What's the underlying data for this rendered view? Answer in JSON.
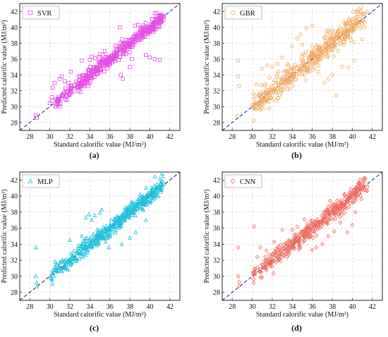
{
  "x_axis_label": "Standard calorific value (MJ/m³)",
  "y_axis_label": "Predicted calorific value (MJ/m³)",
  "chart_data": [
    {
      "type": "scatter",
      "panel_label": "(a)",
      "legend": "SVR",
      "marker": "square",
      "color": "#e64ee6",
      "xlim": [
        27,
        43
      ],
      "ylim": [
        27,
        43
      ],
      "xticks": [
        28,
        30,
        32,
        34,
        36,
        38,
        40,
        42
      ],
      "yticks": [
        28,
        30,
        32,
        34,
        36,
        38,
        40,
        42
      ],
      "grid": true,
      "legend_position": "top-left",
      "reference_line": {
        "style": "dashed",
        "color": "#1f2fa8",
        "from": [
          27,
          27
        ],
        "to": [
          43,
          43
        ]
      },
      "seed": 11,
      "n": 420,
      "spread": 0.45,
      "outliers": [
        [
          28.6,
          28.9
        ],
        [
          28.7,
          28.6
        ],
        [
          30.2,
          31.2
        ],
        [
          30.3,
          32.4
        ],
        [
          30.5,
          33.0
        ],
        [
          31.0,
          33.5
        ],
        [
          31.2,
          33.8
        ],
        [
          31.5,
          33.2
        ],
        [
          32.1,
          34.4
        ],
        [
          33.2,
          35.8
        ],
        [
          34.0,
          35.9
        ],
        [
          34.2,
          36.3
        ],
        [
          34.5,
          36.1
        ],
        [
          35.0,
          36.6
        ],
        [
          35.5,
          37.0
        ],
        [
          37.1,
          34.0
        ],
        [
          37.3,
          33.5
        ],
        [
          38.0,
          35.0
        ],
        [
          38.5,
          40.2
        ],
        [
          38.8,
          40.3
        ],
        [
          39.6,
          36.5
        ],
        [
          40.0,
          36.2
        ],
        [
          40.5,
          36.0
        ],
        [
          41.0,
          35.9
        ],
        [
          41.2,
          40.8
        ],
        [
          37.0,
          40.0
        ],
        [
          38.2,
          36.0
        ]
      ]
    },
    {
      "type": "scatter",
      "panel_label": "(b)",
      "legend": "GBR",
      "marker": "circle",
      "color": "#f2a65c",
      "xlim": [
        27,
        43
      ],
      "ylim": [
        27,
        43
      ],
      "xticks": [
        28,
        30,
        32,
        34,
        36,
        38,
        40,
        42
      ],
      "yticks": [
        28,
        30,
        32,
        34,
        36,
        38,
        40,
        42
      ],
      "grid": true,
      "legend_position": "top-left",
      "reference_line": {
        "style": "dashed",
        "color": "#1f2fa8",
        "from": [
          27,
          27
        ],
        "to": [
          43,
          43
        ]
      },
      "seed": 23,
      "n": 440,
      "spread": 0.75,
      "outliers": [
        [
          28.5,
          28.8
        ],
        [
          28.6,
          35.8
        ],
        [
          28.6,
          33.8
        ],
        [
          28.7,
          32.6
        ],
        [
          30.1,
          31.6
        ],
        [
          30.4,
          32.8
        ],
        [
          31.0,
          34.8
        ],
        [
          31.5,
          35.2
        ],
        [
          32.0,
          35.0
        ],
        [
          32.5,
          35.4
        ],
        [
          33.0,
          36.2
        ],
        [
          34.0,
          37.6
        ],
        [
          34.5,
          38.6
        ],
        [
          35.0,
          37.8
        ],
        [
          34.8,
          39.1
        ],
        [
          35.4,
          39.9
        ],
        [
          36.0,
          40.2
        ],
        [
          37.2,
          33.0
        ],
        [
          37.6,
          33.5
        ],
        [
          38.0,
          34.0
        ],
        [
          38.4,
          31.4
        ],
        [
          39.0,
          35.0
        ],
        [
          39.6,
          34.9
        ],
        [
          40.2,
          35.8
        ],
        [
          41.0,
          38.5
        ],
        [
          41.2,
          40.0
        ],
        [
          41.2,
          40.6
        ]
      ]
    },
    {
      "type": "scatter",
      "panel_label": "(c)",
      "legend": "MLP",
      "marker": "triangle",
      "color": "#1fc0dc",
      "xlim": [
        27,
        43
      ],
      "ylim": [
        27,
        43
      ],
      "xticks": [
        28,
        30,
        32,
        34,
        36,
        38,
        40,
        42
      ],
      "yticks": [
        28,
        30,
        32,
        34,
        36,
        38,
        40,
        42
      ],
      "grid": true,
      "legend_position": "top-left",
      "reference_line": {
        "style": "dashed",
        "color": "#1f2e3a",
        "from": [
          27,
          27
        ],
        "to": [
          43,
          43
        ]
      },
      "seed": 37,
      "n": 460,
      "spread": 0.45,
      "outliers": [
        [
          28.6,
          33.6
        ],
        [
          28.6,
          30.0
        ],
        [
          28.7,
          29.2
        ],
        [
          28.7,
          28.7
        ],
        [
          30.5,
          31.8
        ],
        [
          32.0,
          34.5
        ],
        [
          33.2,
          35.0
        ],
        [
          33.6,
          37.3
        ],
        [
          33.9,
          37.7
        ],
        [
          34.2,
          37.0
        ],
        [
          34.5,
          37.6
        ],
        [
          35.0,
          37.9
        ],
        [
          35.2,
          38.3
        ],
        [
          35.6,
          34.3
        ],
        [
          35.9,
          33.6
        ],
        [
          36.0,
          35.0
        ],
        [
          37.2,
          34.0
        ],
        [
          38.0,
          34.8
        ],
        [
          38.6,
          35.5
        ],
        [
          39.0,
          40.2
        ],
        [
          39.6,
          37.0
        ],
        [
          40.5,
          42.4
        ],
        [
          41.0,
          42.1
        ],
        [
          41.2,
          42.8
        ]
      ]
    },
    {
      "type": "scatter",
      "panel_label": "(d)",
      "legend": "CNN",
      "marker": "diamond",
      "color": "#ef6b5d",
      "xlim": [
        27,
        43
      ],
      "ylim": [
        27,
        43
      ],
      "xticks": [
        28,
        30,
        32,
        34,
        36,
        38,
        40,
        42
      ],
      "yticks": [
        28,
        30,
        32,
        34,
        36,
        38,
        40,
        42
      ],
      "grid": true,
      "legend_position": "top-left",
      "reference_line": {
        "style": "dashed",
        "color": "#1f2fa8",
        "from": [
          27,
          27
        ],
        "to": [
          43,
          43
        ]
      },
      "seed": 51,
      "n": 440,
      "spread": 0.55,
      "outliers": [
        [
          28.6,
          33.6
        ],
        [
          28.6,
          30.0
        ],
        [
          28.7,
          29.3
        ],
        [
          28.7,
          28.8
        ],
        [
          30.2,
          36.2
        ],
        [
          30.5,
          32.4
        ],
        [
          30.8,
          33.6
        ],
        [
          31.4,
          33.2
        ],
        [
          32.2,
          34.3
        ],
        [
          33.0,
          35.8
        ],
        [
          34.0,
          35.8
        ],
        [
          34.5,
          36.2
        ],
        [
          35.2,
          37.1
        ],
        [
          36.0,
          33.3
        ],
        [
          36.4,
          33.6
        ],
        [
          37.0,
          34.0
        ],
        [
          37.6,
          35.0
        ],
        [
          38.2,
          35.6
        ],
        [
          38.8,
          36.7
        ],
        [
          39.5,
          35.5
        ],
        [
          40.0,
          36.4
        ],
        [
          40.3,
          38.0
        ],
        [
          41.2,
          41.8
        ],
        [
          41.3,
          42.2
        ]
      ]
    }
  ]
}
